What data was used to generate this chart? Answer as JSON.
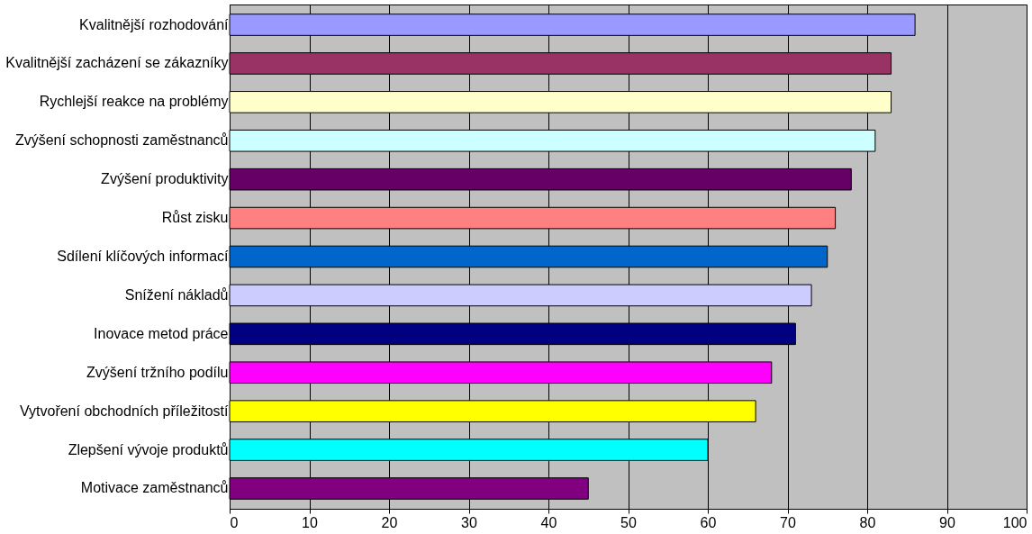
{
  "chart_data": {
    "type": "bar",
    "orientation": "horizontal",
    "categories": [
      "Kvalitnější rozhodování",
      "Kvalitnější zacházení se zákazníky",
      "Rychlejší reakce na problémy",
      "Zvýšení schopnosti zaměstnanců",
      "Zvýšení produktivity",
      "Růst zisku",
      "Sdílení klíčových informací",
      "Snížení nákladů",
      "Inovace metod práce",
      "Zvýšení tržního podílu",
      "Vytvoření obchodních příležitostí",
      "Zlepšení vývoje produktů",
      "Motivace zaměstnanců"
    ],
    "values": [
      86,
      83,
      83,
      81,
      78,
      76,
      75,
      73,
      71,
      68,
      66,
      60,
      45
    ],
    "colors": [
      "#9999ff",
      "#993366",
      "#ffffcc",
      "#ccffff",
      "#660066",
      "#ff8080",
      "#0066cc",
      "#ccccff",
      "#000080",
      "#ff00ff",
      "#ffff00",
      "#00ffff",
      "#800080"
    ],
    "xlim": [
      0,
      100
    ],
    "xticks": [
      0,
      10,
      20,
      30,
      40,
      50,
      60,
      70,
      80,
      90,
      100
    ],
    "grid": "x"
  }
}
